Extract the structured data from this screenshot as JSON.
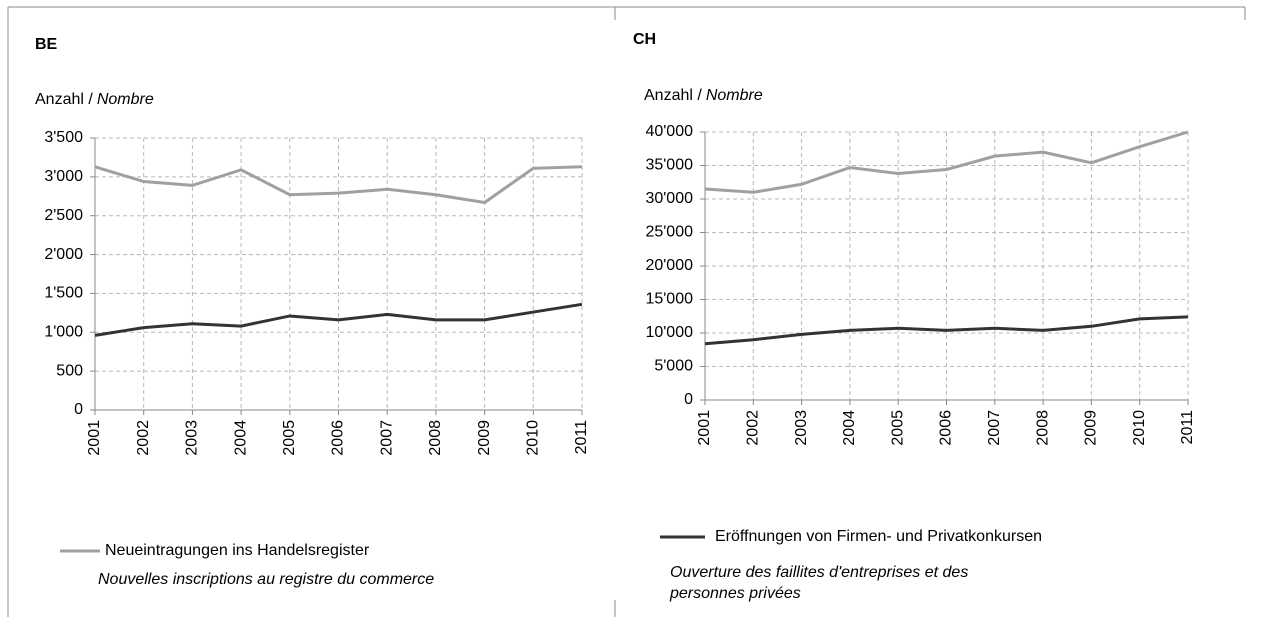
{
  "chart_data": [
    {
      "type": "line",
      "title": "BE",
      "ylabel": "Anzahl /",
      "ylabel_fr": "Nombre",
      "categories": [
        "2001",
        "2002",
        "2003",
        "2004",
        "2005",
        "2006",
        "2007",
        "2008",
        "2009",
        "2010",
        "2011"
      ],
      "ylim": [
        0,
        3500
      ],
      "yticks": [
        0,
        500,
        {
          "value": 1000,
          "label": "1'000"
        },
        {
          "value": 1500,
          "label": "1'500"
        },
        {
          "value": 2000,
          "label": "2'000"
        },
        {
          "value": 2500,
          "label": "2'500"
        },
        {
          "value": 3000,
          "label": "3'000"
        },
        {
          "value": 3500,
          "label": "3'500"
        }
      ],
      "grid": true,
      "series": [
        {
          "name": "Neueintragungen ins Handelsregister",
          "name_fr": [
            "Nouvelles inscriptions au registre du commerce"
          ],
          "color": "#a0a0a0",
          "values": [
            3130,
            2940,
            2890,
            3090,
            2770,
            2790,
            2840,
            2770,
            2670,
            3110,
            3130
          ]
        },
        {
          "color": "#333333",
          "values": [
            960,
            1060,
            1110,
            1080,
            1210,
            1160,
            1230,
            1160,
            1160,
            1260,
            1360
          ]
        }
      ]
    },
    {
      "type": "line",
      "title": "CH",
      "ylabel": "Anzahl /",
      "ylabel_fr": "Nombre",
      "categories": [
        "2001",
        "2002",
        "2003",
        "2004",
        "2005",
        "2006",
        "2007",
        "2008",
        "2009",
        "2010",
        "2011"
      ],
      "ylim": [
        0,
        40000
      ],
      "yticks": [
        0,
        {
          "value": 5000,
          "label": "5'000"
        },
        {
          "value": 10000,
          "label": "10'000"
        },
        {
          "value": 15000,
          "label": "15'000"
        },
        {
          "value": 20000,
          "label": "20'000"
        },
        {
          "value": 25000,
          "label": "25'000"
        },
        {
          "value": 30000,
          "label": "30'000"
        },
        {
          "value": 35000,
          "label": "35'000"
        },
        {
          "value": 40000,
          "label": "40'000"
        }
      ],
      "grid": true,
      "series": [
        {
          "color": "#a0a0a0",
          "values": [
            31500,
            31000,
            32200,
            34700,
            33800,
            34400,
            36400,
            37000,
            35400,
            37800,
            40000
          ]
        },
        {
          "name": "Eröffnungen von Firmen- und Privatkonkursen",
          "name_fr": [
            "Ouverture des faillites d'entreprises et des",
            "personnes privées"
          ],
          "color": "#333333",
          "values": [
            8400,
            9000,
            9800,
            10400,
            10700,
            10400,
            10700,
            10400,
            11000,
            12100,
            12400
          ]
        }
      ]
    }
  ]
}
